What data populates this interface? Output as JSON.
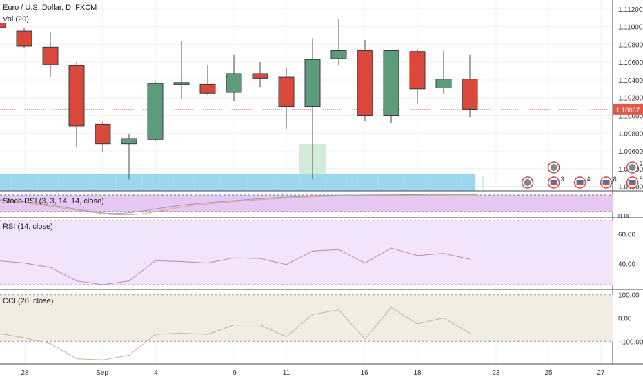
{
  "chart_data": [
    {
      "type": "candlestick",
      "title": "Euro / U.S. Dollar, D, FXCM",
      "volume_label": "Vol (20)",
      "price_ticks": [
        "1.11200",
        "1.11000",
        "1.10800",
        "1.10600",
        "1.10400",
        "1.10200",
        "1.10000",
        "1.09800",
        "1.09600",
        "1.09400",
        "1.09200"
      ],
      "current_price": "1.10067",
      "ylim": [
        1.0915,
        1.113
      ],
      "x_ticks": [
        "28",
        "Sep",
        "4",
        "9",
        "11",
        "16",
        "18",
        "23",
        "25",
        "27"
      ],
      "candles": [
        {
          "o": 1.1104,
          "h": 1.111,
          "l": 1.1098,
          "c": 1.1099
        },
        {
          "o": 1.1095,
          "h": 1.1099,
          "l": 1.1076,
          "c": 1.1078
        },
        {
          "o": 1.1077,
          "h": 1.1094,
          "l": 1.1043,
          "c": 1.1057
        },
        {
          "o": 1.1056,
          "h": 1.106,
          "l": 1.0964,
          "c": 1.0988
        },
        {
          "o": 1.099,
          "h": 1.0993,
          "l": 1.0959,
          "c": 1.0968
        },
        {
          "o": 1.0968,
          "h": 1.0979,
          "l": 1.0928,
          "c": 1.0974
        },
        {
          "o": 1.0973,
          "h": 1.1038,
          "l": 1.0971,
          "c": 1.1036
        },
        {
          "o": 1.1035,
          "h": 1.1084,
          "l": 1.1018,
          "c": 1.1037
        },
        {
          "o": 1.1035,
          "h": 1.1057,
          "l": 1.1023,
          "c": 1.1025
        },
        {
          "o": 1.1026,
          "h": 1.1068,
          "l": 1.1016,
          "c": 1.1047
        },
        {
          "o": 1.1047,
          "h": 1.106,
          "l": 1.1032,
          "c": 1.1042
        },
        {
          "o": 1.1043,
          "h": 1.1054,
          "l": 1.0985,
          "c": 1.101
        },
        {
          "o": 1.101,
          "h": 1.1087,
          "l": 1.0928,
          "c": 1.1063
        },
        {
          "o": 1.1064,
          "h": 1.1109,
          "l": 1.1057,
          "c": 1.1073
        },
        {
          "o": 1.1073,
          "h": 1.1085,
          "l": 1.0994,
          "c": 1.1
        },
        {
          "o": 1.1,
          "h": 1.1074,
          "l": 1.0991,
          "c": 1.1073
        },
        {
          "o": 1.1072,
          "h": 1.1075,
          "l": 1.1013,
          "c": 1.103
        },
        {
          "o": 1.1031,
          "h": 1.1073,
          "l": 1.1024,
          "c": 1.1041
        },
        {
          "o": 1.1041,
          "h": 1.1068,
          "l": 1.0998,
          "c": 1.1007
        }
      ],
      "volume_ghost_index": 12,
      "event_markers": [
        {
          "candle": 20.2,
          "row": 1,
          "kind": "dot-badge",
          "count": ""
        },
        {
          "candle": 21.2,
          "row": 2,
          "kind": "dot-badge",
          "count": ""
        },
        {
          "candle": 21.2,
          "row": 1,
          "kind": "flag-badge",
          "count": "3"
        },
        {
          "candle": 22.2,
          "row": 1,
          "kind": "flag-badge",
          "count": "4"
        },
        {
          "candle": 23.2,
          "row": 1,
          "kind": "flag-badge",
          "count": "8"
        },
        {
          "candle": 24.2,
          "row": 2,
          "kind": "dot-badge",
          "count": "2"
        },
        {
          "candle": 24.2,
          "row": 1,
          "kind": "flag-badge",
          "count": "8"
        }
      ]
    },
    {
      "type": "line",
      "title": "Stoch RSI (3, 3, 14, 14, close)",
      "ticks": [
        "0.00"
      ]
    },
    {
      "type": "line",
      "title": "RSI (14, close)",
      "ticks": [
        "60.00",
        "40.00"
      ],
      "ylim": [
        26,
        69
      ],
      "band": [
        30,
        70
      ],
      "values": [
        42,
        40.5,
        37.5,
        28.5,
        26,
        28.5,
        42,
        41.5,
        40.5,
        44,
        43.5,
        39.5,
        48.5,
        49.5,
        40.5,
        50.5,
        45.5,
        47,
        43
      ]
    },
    {
      "type": "line",
      "title": "CCI (20, close)",
      "ticks": [
        "100.00",
        "0.00",
        "−100.00"
      ],
      "ylim": [
        -185,
        105
      ],
      "band": [
        -100,
        100
      ],
      "values": [
        -65,
        -85,
        -110,
        -175,
        -180,
        -160,
        -70,
        -65,
        -70,
        -30,
        -30,
        -80,
        15,
        35,
        -90,
        45,
        -25,
        0,
        -65
      ]
    }
  ],
  "colors": {
    "up": "#5d9c7a",
    "down": "#d9483b",
    "stoch_bg": "#e6c8f2",
    "rsi_bg": "#f1e4fb",
    "rsi_line": "#bf86c0",
    "cci_bg": "#f2ece2",
    "cci_line": "#c4b499",
    "volume": "#8cd0ec",
    "volume_ghost": "#c6e8cf",
    "price_line": "#e05a5a"
  }
}
